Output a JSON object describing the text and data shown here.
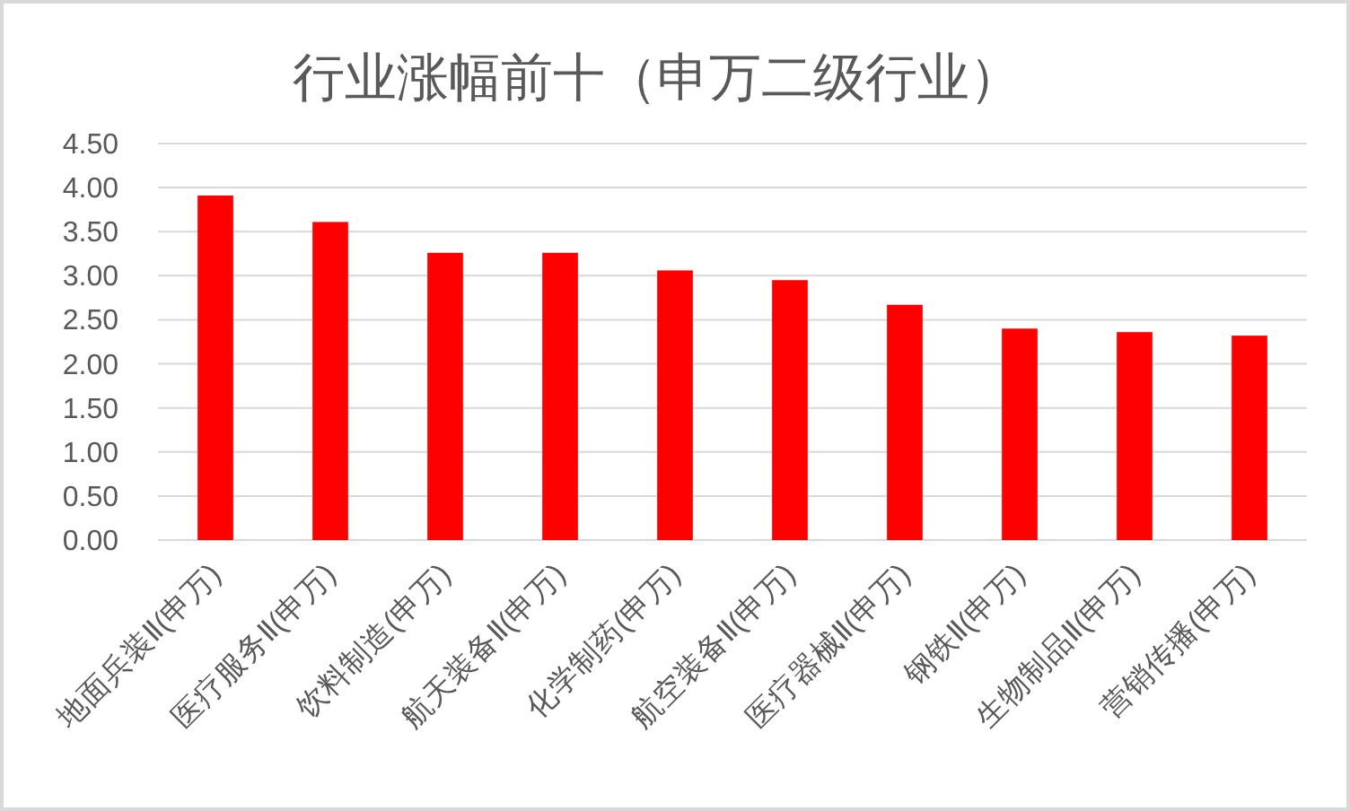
{
  "chart_data": {
    "type": "bar",
    "title": "行业涨幅前十（申万二级行业）",
    "categories": [
      "地面兵装Ⅱ(申万)",
      "医疗服务Ⅱ(申万)",
      "饮料制造(申万)",
      "航天装备Ⅱ(申万)",
      "化学制药(申万)",
      "航空装备Ⅱ(申万)",
      "医疗器械Ⅱ(申万)",
      "钢铁Ⅱ(申万)",
      "生物制品Ⅱ(申万)",
      "营销传播(申万)"
    ],
    "values": [
      3.91,
      3.61,
      3.26,
      3.26,
      3.06,
      2.95,
      2.67,
      2.4,
      2.36,
      2.32
    ],
    "color": "#ff0000",
    "ylim": [
      0,
      4.5
    ],
    "yticks": [
      {
        "value": 0,
        "label": "0.00"
      },
      {
        "value": 0.5,
        "label": "0.50"
      },
      {
        "value": 1,
        "label": "1.00"
      },
      {
        "value": 1.5,
        "label": "1.50"
      },
      {
        "value": 2,
        "label": "2.00"
      },
      {
        "value": 2.5,
        "label": "2.50"
      },
      {
        "value": 3,
        "label": "3.00"
      },
      {
        "value": 3.5,
        "label": "3.50"
      },
      {
        "value": 4,
        "label": "4.00"
      },
      {
        "value": 4.5,
        "label": "4.50"
      }
    ],
    "grid": "y"
  }
}
